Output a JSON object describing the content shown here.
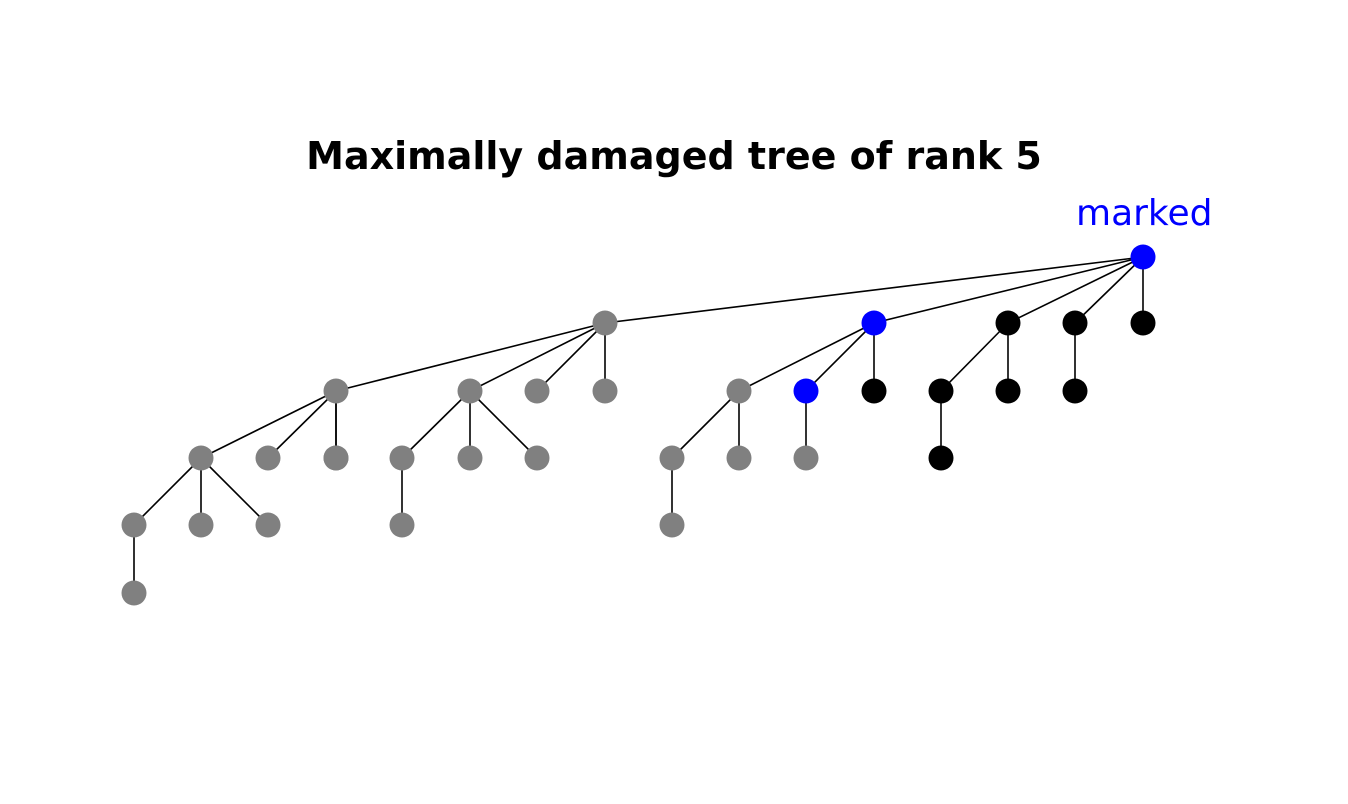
{
  "title": "Maximally damaged tree of rank 5",
  "marked_label": "marked",
  "colors": {
    "gray": "#808080",
    "black": "#000000",
    "marked": "#0000ff",
    "edge": "#000000"
  },
  "tree": {
    "root": "r",
    "nodes": [
      {
        "id": "r",
        "color": "marked",
        "label": "marked"
      },
      {
        "id": "a",
        "color": "gray"
      },
      {
        "id": "b",
        "color": "marked"
      },
      {
        "id": "c",
        "color": "black"
      },
      {
        "id": "d",
        "color": "black"
      },
      {
        "id": "e",
        "color": "black"
      },
      {
        "id": "a1",
        "color": "gray"
      },
      {
        "id": "a2",
        "color": "gray"
      },
      {
        "id": "a3",
        "color": "gray"
      },
      {
        "id": "a4",
        "color": "gray"
      },
      {
        "id": "a1a",
        "color": "gray"
      },
      {
        "id": "a1b",
        "color": "gray"
      },
      {
        "id": "a1c",
        "color": "gray"
      },
      {
        "id": "a1d",
        "color": "gray"
      },
      {
        "id": "a1a1",
        "color": "gray"
      },
      {
        "id": "a1a2",
        "color": "gray"
      },
      {
        "id": "a1a3",
        "color": "gray"
      },
      {
        "id": "a1a1x",
        "color": "gray"
      },
      {
        "id": "a2a",
        "color": "gray"
      },
      {
        "id": "a2b",
        "color": "gray"
      },
      {
        "id": "a2c",
        "color": "gray"
      },
      {
        "id": "a2a1",
        "color": "gray"
      },
      {
        "id": "b1",
        "color": "gray"
      },
      {
        "id": "b2",
        "color": "marked"
      },
      {
        "id": "b3",
        "color": "black"
      },
      {
        "id": "b1a",
        "color": "gray"
      },
      {
        "id": "b1b",
        "color": "gray"
      },
      {
        "id": "b2a",
        "color": "gray"
      },
      {
        "id": "b1a1",
        "color": "gray"
      },
      {
        "id": "c1",
        "color": "black"
      },
      {
        "id": "c2",
        "color": "black"
      },
      {
        "id": "c1a",
        "color": "black"
      },
      {
        "id": "d1",
        "color": "black"
      }
    ],
    "edges": [
      [
        "r",
        "a"
      ],
      [
        "r",
        "b"
      ],
      [
        "r",
        "c"
      ],
      [
        "r",
        "d"
      ],
      [
        "r",
        "e"
      ],
      [
        "a",
        "a1"
      ],
      [
        "a",
        "a2"
      ],
      [
        "a",
        "a3"
      ],
      [
        "a",
        "a4"
      ],
      [
        "a1",
        "a1a"
      ],
      [
        "a1",
        "a1b"
      ],
      [
        "a1",
        "a1c"
      ],
      [
        "a1",
        "a1d"
      ],
      [
        "a1a",
        "a1a1"
      ],
      [
        "a1a",
        "a1a2"
      ],
      [
        "a1a",
        "a1a3"
      ],
      [
        "a1a1",
        "a1a1x"
      ],
      [
        "a2",
        "a2a"
      ],
      [
        "a2",
        "a2b"
      ],
      [
        "a2",
        "a2c"
      ],
      [
        "a2a",
        "a2a1"
      ],
      [
        "b",
        "b1"
      ],
      [
        "b",
        "b2"
      ],
      [
        "b",
        "b3"
      ],
      [
        "b1",
        "b1a"
      ],
      [
        "b1",
        "b1b"
      ],
      [
        "b2",
        "b2a"
      ],
      [
        "b1a",
        "b1a1"
      ],
      [
        "c",
        "c1"
      ],
      [
        "c",
        "c2"
      ],
      [
        "c1",
        "c1a"
      ],
      [
        "d",
        "d1"
      ]
    ]
  }
}
